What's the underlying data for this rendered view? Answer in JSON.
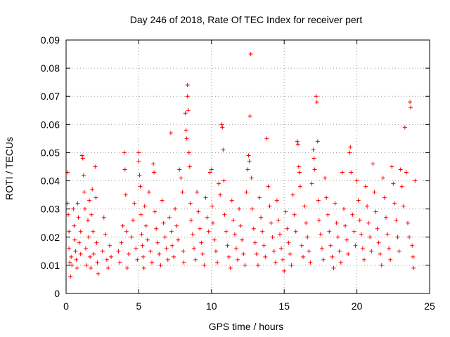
{
  "chart_data": {
    "type": "scatter",
    "title": "Day 246 of 2018, Rate Of TEC Index for receiver pert",
    "xlabel": "GPS time / hours",
    "ylabel": "ROTI / TECUs",
    "xlim": [
      0,
      25
    ],
    "ylim": [
      0,
      0.09
    ],
    "xticks": [
      0,
      5,
      10,
      15,
      20,
      25
    ],
    "xtick_labels": [
      "0",
      "5",
      "10",
      "15",
      "20",
      "25"
    ],
    "yticks": [
      0,
      0.01,
      0.02,
      0.03,
      0.04,
      0.05,
      0.06,
      0.07,
      0.08,
      0.09
    ],
    "ytick_labels": [
      "0",
      "0.01",
      "0.02",
      "0.03",
      "0.04",
      "0.05",
      "0.06",
      "0.07",
      "0.08",
      "0.09"
    ],
    "grid": true,
    "marker": "+",
    "color": "#ff0000",
    "series": [
      {
        "name": "ROTI",
        "points": [
          [
            0.1,
            0.043
          ],
          [
            0.1,
            0.032
          ],
          [
            0.15,
            0.028
          ],
          [
            0.2,
            0.022
          ],
          [
            0.2,
            0.016
          ],
          [
            0.25,
            0.011
          ],
          [
            0.3,
            0.006
          ],
          [
            0.35,
            0.013
          ],
          [
            0.4,
            0.01
          ],
          [
            0.5,
            0.03
          ],
          [
            0.55,
            0.024
          ],
          [
            0.6,
            0.019
          ],
          [
            0.65,
            0.015
          ],
          [
            0.7,
            0.012
          ],
          [
            0.75,
            0.009
          ],
          [
            0.8,
            0.032
          ],
          [
            0.85,
            0.027
          ],
          [
            0.9,
            0.018
          ],
          [
            1.0,
            0.014
          ],
          [
            1.0,
            0.022
          ],
          [
            1.1,
            0.049
          ],
          [
            1.15,
            0.048
          ],
          [
            1.2,
            0.042
          ],
          [
            1.25,
            0.036
          ],
          [
            1.3,
            0.03
          ],
          [
            1.35,
            0.016
          ],
          [
            1.4,
            0.01
          ],
          [
            1.5,
            0.026
          ],
          [
            1.55,
            0.02
          ],
          [
            1.6,
            0.033
          ],
          [
            1.65,
            0.013
          ],
          [
            1.7,
            0.009
          ],
          [
            1.75,
            0.028
          ],
          [
            1.8,
            0.037
          ],
          [
            1.85,
            0.022
          ],
          [
            1.9,
            0.014
          ],
          [
            2.0,
            0.045
          ],
          [
            2.05,
            0.034
          ],
          [
            2.1,
            0.018
          ],
          [
            2.15,
            0.011
          ],
          [
            2.2,
            0.007
          ],
          [
            2.5,
            0.015
          ],
          [
            2.6,
            0.027
          ],
          [
            2.7,
            0.021
          ],
          [
            2.8,
            0.012
          ],
          [
            2.9,
            0.009
          ],
          [
            3.0,
            0.017
          ],
          [
            3.1,
            0.013
          ],
          [
            3.6,
            0.015
          ],
          [
            3.7,
            0.011
          ],
          [
            3.8,
            0.018
          ],
          [
            3.9,
            0.024
          ],
          [
            4.0,
            0.05
          ],
          [
            4.05,
            0.044
          ],
          [
            4.1,
            0.035
          ],
          [
            4.15,
            0.022
          ],
          [
            4.2,
            0.009
          ],
          [
            4.3,
            0.014
          ],
          [
            4.5,
            0.02
          ],
          [
            4.6,
            0.026
          ],
          [
            4.7,
            0.032
          ],
          [
            4.8,
            0.016
          ],
          [
            4.9,
            0.012
          ],
          [
            5.0,
            0.05
          ],
          [
            5.0,
            0.047
          ],
          [
            5.05,
            0.042
          ],
          [
            5.1,
            0.038
          ],
          [
            5.15,
            0.028
          ],
          [
            5.2,
            0.021
          ],
          [
            5.25,
            0.017
          ],
          [
            5.3,
            0.013
          ],
          [
            5.35,
            0.009
          ],
          [
            5.4,
            0.031
          ],
          [
            5.5,
            0.024
          ],
          [
            5.6,
            0.019
          ],
          [
            5.7,
            0.036
          ],
          [
            5.8,
            0.015
          ],
          [
            5.9,
            0.011
          ],
          [
            6.0,
            0.046
          ],
          [
            6.05,
            0.043
          ],
          [
            6.1,
            0.029
          ],
          [
            6.2,
            0.023
          ],
          [
            6.3,
            0.018
          ],
          [
            6.4,
            0.014
          ],
          [
            6.5,
            0.01
          ],
          [
            6.6,
            0.033
          ],
          [
            6.7,
            0.025
          ],
          [
            6.8,
            0.02
          ],
          [
            6.9,
            0.016
          ],
          [
            7.0,
            0.012
          ],
          [
            7.1,
            0.027
          ],
          [
            7.2,
            0.057
          ],
          [
            7.25,
            0.022
          ],
          [
            7.3,
            0.017
          ],
          [
            7.4,
            0.013
          ],
          [
            7.5,
            0.03
          ],
          [
            7.6,
            0.024
          ],
          [
            7.7,
            0.019
          ],
          [
            7.8,
            0.044
          ],
          [
            7.9,
            0.041
          ],
          [
            8.0,
            0.036
          ],
          [
            8.05,
            0.015
          ],
          [
            8.1,
            0.011
          ],
          [
            8.2,
            0.064
          ],
          [
            8.25,
            0.058
          ],
          [
            8.3,
            0.055
          ],
          [
            8.35,
            0.074
          ],
          [
            8.35,
            0.07
          ],
          [
            8.4,
            0.065
          ],
          [
            8.45,
            0.05
          ],
          [
            8.5,
            0.045
          ],
          [
            8.55,
            0.032
          ],
          [
            8.6,
            0.026
          ],
          [
            8.7,
            0.021
          ],
          [
            8.8,
            0.016
          ],
          [
            8.9,
            0.012
          ],
          [
            9.0,
            0.036
          ],
          [
            9.1,
            0.029
          ],
          [
            9.2,
            0.023
          ],
          [
            9.3,
            0.018
          ],
          [
            9.4,
            0.014
          ],
          [
            9.5,
            0.01
          ],
          [
            9.6,
            0.034
          ],
          [
            9.7,
            0.027
          ],
          [
            9.8,
            0.022
          ],
          [
            9.9,
            0.043
          ],
          [
            10.0,
            0.044
          ],
          [
            10.05,
            0.031
          ],
          [
            10.1,
            0.025
          ],
          [
            10.2,
            0.019
          ],
          [
            10.3,
            0.015
          ],
          [
            10.4,
            0.011
          ],
          [
            10.5,
            0.039
          ],
          [
            10.6,
            0.035
          ],
          [
            10.7,
            0.06
          ],
          [
            10.75,
            0.059
          ],
          [
            10.8,
            0.051
          ],
          [
            10.85,
            0.04
          ],
          [
            10.9,
            0.028
          ],
          [
            11.0,
            0.022
          ],
          [
            11.1,
            0.017
          ],
          [
            11.2,
            0.013
          ],
          [
            11.3,
            0.009
          ],
          [
            11.4,
            0.033
          ],
          [
            11.5,
            0.026
          ],
          [
            11.6,
            0.021
          ],
          [
            11.7,
            0.016
          ],
          [
            11.8,
            0.012
          ],
          [
            11.9,
            0.03
          ],
          [
            12.0,
            0.024
          ],
          [
            12.1,
            0.019
          ],
          [
            12.2,
            0.014
          ],
          [
            12.3,
            0.01
          ],
          [
            12.4,
            0.036
          ],
          [
            12.5,
            0.044
          ],
          [
            12.55,
            0.049
          ],
          [
            12.6,
            0.047
          ],
          [
            12.65,
            0.063
          ],
          [
            12.7,
            0.085
          ],
          [
            12.75,
            0.041
          ],
          [
            12.8,
            0.03
          ],
          [
            12.9,
            0.023
          ],
          [
            13.0,
            0.018
          ],
          [
            13.1,
            0.014
          ],
          [
            13.2,
            0.01
          ],
          [
            13.3,
            0.034
          ],
          [
            13.4,
            0.027
          ],
          [
            13.5,
            0.022
          ],
          [
            13.6,
            0.017
          ],
          [
            13.7,
            0.013
          ],
          [
            13.8,
            0.055
          ],
          [
            13.9,
            0.038
          ],
          [
            14.0,
            0.031
          ],
          [
            14.1,
            0.025
          ],
          [
            14.2,
            0.02
          ],
          [
            14.3,
            0.015
          ],
          [
            14.4,
            0.011
          ],
          [
            14.5,
            0.033
          ],
          [
            14.6,
            0.026
          ],
          [
            14.7,
            0.021
          ],
          [
            14.8,
            0.016
          ],
          [
            14.9,
            0.012
          ],
          [
            15.0,
            0.008
          ],
          [
            15.1,
            0.029
          ],
          [
            15.2,
            0.023
          ],
          [
            15.3,
            0.018
          ],
          [
            15.4,
            0.014
          ],
          [
            15.5,
            0.01
          ],
          [
            15.6,
            0.035
          ],
          [
            15.7,
            0.028
          ],
          [
            15.8,
            0.022
          ],
          [
            15.9,
            0.054
          ],
          [
            15.95,
            0.053
          ],
          [
            16.0,
            0.045
          ],
          [
            16.05,
            0.043
          ],
          [
            16.1,
            0.038
          ],
          [
            16.2,
            0.017
          ],
          [
            16.3,
            0.013
          ],
          [
            16.4,
            0.031
          ],
          [
            16.5,
            0.025
          ],
          [
            16.6,
            0.02
          ],
          [
            16.7,
            0.015
          ],
          [
            16.8,
            0.011
          ],
          [
            16.9,
            0.039
          ],
          [
            17.0,
            0.051
          ],
          [
            17.05,
            0.048
          ],
          [
            17.1,
            0.044
          ],
          [
            17.2,
            0.07
          ],
          [
            17.25,
            0.068
          ],
          [
            17.3,
            0.054
          ],
          [
            17.35,
            0.033
          ],
          [
            17.4,
            0.026
          ],
          [
            17.5,
            0.021
          ],
          [
            17.6,
            0.016
          ],
          [
            17.7,
            0.012
          ],
          [
            17.8,
            0.041
          ],
          [
            17.9,
            0.034
          ],
          [
            18.0,
            0.028
          ],
          [
            18.1,
            0.022
          ],
          [
            18.2,
            0.017
          ],
          [
            18.3,
            0.013
          ],
          [
            18.4,
            0.009
          ],
          [
            18.5,
            0.032
          ],
          [
            18.6,
            0.025
          ],
          [
            18.7,
            0.02
          ],
          [
            18.8,
            0.015
          ],
          [
            18.9,
            0.011
          ],
          [
            19.0,
            0.043
          ],
          [
            19.1,
            0.03
          ],
          [
            19.2,
            0.024
          ],
          [
            19.3,
            0.019
          ],
          [
            19.4,
            0.014
          ],
          [
            19.5,
            0.05
          ],
          [
            19.55,
            0.052
          ],
          [
            19.6,
            0.043
          ],
          [
            19.7,
            0.028
          ],
          [
            19.8,
            0.022
          ],
          [
            19.9,
            0.017
          ],
          [
            20.0,
            0.04
          ],
          [
            20.1,
            0.033
          ],
          [
            20.2,
            0.026
          ],
          [
            20.3,
            0.021
          ],
          [
            20.4,
            0.016
          ],
          [
            20.5,
            0.012
          ],
          [
            20.6,
            0.038
          ],
          [
            20.7,
            0.031
          ],
          [
            20.8,
            0.025
          ],
          [
            20.9,
            0.02
          ],
          [
            21.0,
            0.015
          ],
          [
            21.1,
            0.046
          ],
          [
            21.2,
            0.036
          ],
          [
            21.3,
            0.029
          ],
          [
            21.4,
            0.023
          ],
          [
            21.5,
            0.018
          ],
          [
            21.6,
            0.014
          ],
          [
            21.7,
            0.01
          ],
          [
            21.8,
            0.041
          ],
          [
            21.9,
            0.034
          ],
          [
            22.0,
            0.027
          ],
          [
            22.1,
            0.021
          ],
          [
            22.2,
            0.016
          ],
          [
            22.3,
            0.012
          ],
          [
            22.4,
            0.045
          ],
          [
            22.5,
            0.039
          ],
          [
            22.6,
            0.032
          ],
          [
            22.7,
            0.026
          ],
          [
            22.8,
            0.02
          ],
          [
            22.9,
            0.015
          ],
          [
            23.0,
            0.044
          ],
          [
            23.1,
            0.038
          ],
          [
            23.2,
            0.031
          ],
          [
            23.3,
            0.059
          ],
          [
            23.4,
            0.043
          ],
          [
            23.5,
            0.025
          ],
          [
            23.6,
            0.02
          ],
          [
            23.65,
            0.068
          ],
          [
            23.7,
            0.066
          ],
          [
            23.8,
            0.017
          ],
          [
            23.85,
            0.013
          ],
          [
            23.9,
            0.009
          ],
          [
            24.0,
            0.04
          ]
        ]
      }
    ]
  }
}
